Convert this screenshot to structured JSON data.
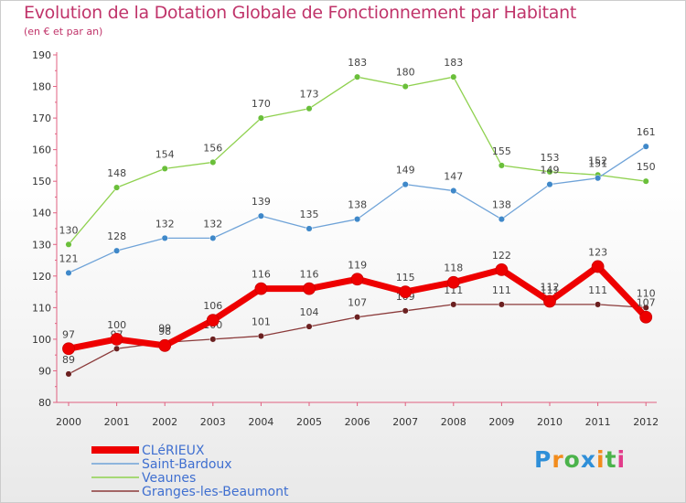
{
  "chart_data": {
    "type": "line",
    "title": "Evolution de la Dotation Globale de Fonctionnement par Habitant",
    "subtitle": "(en € et par an)",
    "xlabel": "",
    "ylabel": "",
    "ylim": [
      80,
      190
    ],
    "yticks": [
      80,
      90,
      100,
      110,
      120,
      130,
      140,
      150,
      160,
      170,
      180,
      190
    ],
    "categories": [
      "2000",
      "2001",
      "2002",
      "2003",
      "2004",
      "2005",
      "2006",
      "2007",
      "2008",
      "2009",
      "2010",
      "2011",
      "2012"
    ],
    "series": [
      {
        "name": "Veaunes",
        "color": "#8fd14f",
        "marker": "#6abf3a",
        "values": [
          130,
          148,
          154,
          156,
          170,
          173,
          183,
          180,
          183,
          155,
          153,
          152,
          150
        ]
      },
      {
        "name": "Saint-Bardoux",
        "color": "#6fa3d8",
        "marker": "#3f88c9",
        "values": [
          121,
          128,
          132,
          132,
          139,
          135,
          138,
          149,
          147,
          138,
          149,
          151,
          161
        ]
      },
      {
        "name": "Granges-les-Beaumont",
        "color": "#8b3a3a",
        "marker": "#6b2020",
        "values": [
          89,
          97,
          99,
          100,
          101,
          104,
          107,
          109,
          111,
          111,
          111,
          111,
          110
        ]
      },
      {
        "name": "CLéRIEUX",
        "color": "#ee0000",
        "marker": "#ee0000",
        "values": [
          97,
          100,
          98,
          106,
          116,
          116,
          119,
          115,
          118,
          122,
          112,
          123,
          107
        ]
      }
    ],
    "legend_order": [
      "CLéRIEUX",
      "Saint-Bardoux",
      "Veaunes",
      "Granges-les-Beaumont"
    ],
    "legend_position": "bottom-left",
    "grid": false
  },
  "legend_colors": {
    "text": "#3f6fd0"
  },
  "brand": {
    "letters": [
      "P",
      "r",
      "o",
      "x",
      "i",
      "t",
      "i"
    ],
    "colors": [
      "#2f8fd8",
      "#f28c1c",
      "#4bb34b",
      "#2f8fd8",
      "#f28c1c",
      "#4bb34b",
      "#e23c8a"
    ]
  }
}
